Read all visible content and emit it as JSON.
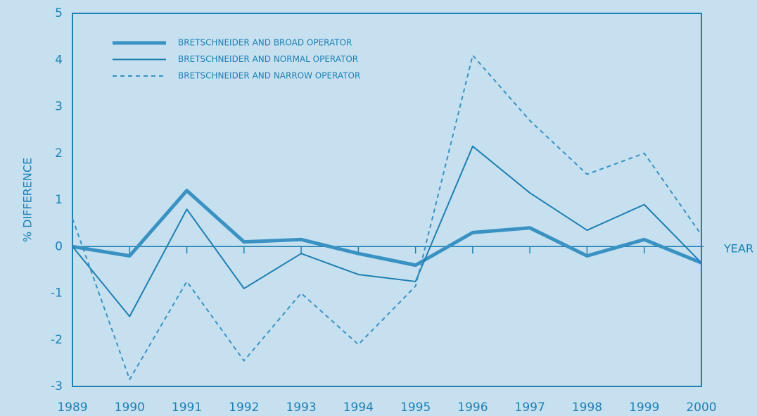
{
  "chart_data": {
    "type": "line",
    "x_label": "YEAR",
    "y_label": "% DIFFERENCE",
    "x": [
      1989,
      1990,
      1991,
      1992,
      1993,
      1994,
      1995,
      1996,
      1997,
      1998,
      1999,
      2000
    ],
    "xlim": [
      1989,
      2000
    ],
    "xticks": [
      1989,
      1990,
      1991,
      1992,
      1993,
      1994,
      1995,
      1996,
      1997,
      1998,
      1999,
      2000
    ],
    "ylim": [
      -3,
      5
    ],
    "yticks": [
      -3,
      -2,
      -1,
      0,
      1,
      2,
      3,
      4,
      5
    ],
    "legend": "upper left",
    "series": [
      {
        "name": "BRETSCHNEIDER AND BROAD OPERATOR",
        "color": "#3a92c2",
        "line_width": 5,
        "dash": false,
        "values": [
          0,
          -0.2,
          1.2,
          0.1,
          0.15,
          -0.15,
          -0.4,
          0.3,
          0.4,
          -0.2,
          0.15,
          -0.35
        ]
      },
      {
        "name": "BRETSCHNEIDER AND NORMAL OPERATOR",
        "color": "#1f7fb0",
        "line_width": 2,
        "dash": false,
        "values": [
          0,
          -1.5,
          0.8,
          -0.9,
          -0.15,
          -0.6,
          -0.75,
          2.15,
          1.15,
          0.35,
          0.9,
          -0.35
        ]
      },
      {
        "name": "BRETSCHNEIDER AND NARROW OPERATOR",
        "color": "#3a92c2",
        "line_width": 2,
        "dash": true,
        "values": [
          0.6,
          -2.85,
          -0.75,
          -2.45,
          -1.0,
          -2.1,
          -0.85,
          4.1,
          2.7,
          1.55,
          2.0,
          0.25
        ]
      }
    ]
  }
}
